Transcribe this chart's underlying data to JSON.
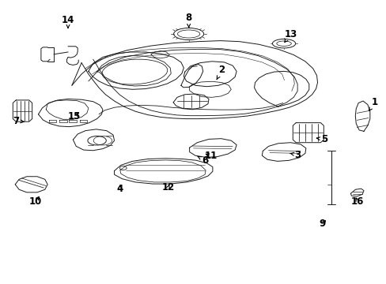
{
  "bg_color": "#ffffff",
  "line_color": "#1a1a1a",
  "lw": 0.7,
  "figsize": [
    4.89,
    3.6
  ],
  "dpi": 100,
  "labels": {
    "1": [
      0.97,
      0.64,
      0.954,
      0.608
    ],
    "2": [
      0.574,
      0.755,
      0.56,
      0.72
    ],
    "3": [
      0.77,
      0.455,
      0.75,
      0.46
    ],
    "4": [
      0.31,
      0.335,
      0.31,
      0.358
    ],
    "5": [
      0.84,
      0.51,
      0.812,
      0.515
    ],
    "6": [
      0.53,
      0.435,
      0.51,
      0.45
    ],
    "7": [
      0.04,
      0.575,
      0.068,
      0.57
    ],
    "8": [
      0.488,
      0.94,
      0.488,
      0.895
    ],
    "9": [
      0.834,
      0.21,
      0.848,
      0.23
    ],
    "10": [
      0.09,
      0.29,
      0.105,
      0.315
    ],
    "11": [
      0.545,
      0.45,
      0.525,
      0.462
    ],
    "12": [
      0.435,
      0.34,
      0.44,
      0.358
    ],
    "13": [
      0.752,
      0.88,
      0.735,
      0.85
    ],
    "14": [
      0.175,
      0.93,
      0.175,
      0.9
    ],
    "15": [
      0.192,
      0.59,
      0.208,
      0.61
    ],
    "16": [
      0.926,
      0.29,
      0.918,
      0.312
    ]
  }
}
